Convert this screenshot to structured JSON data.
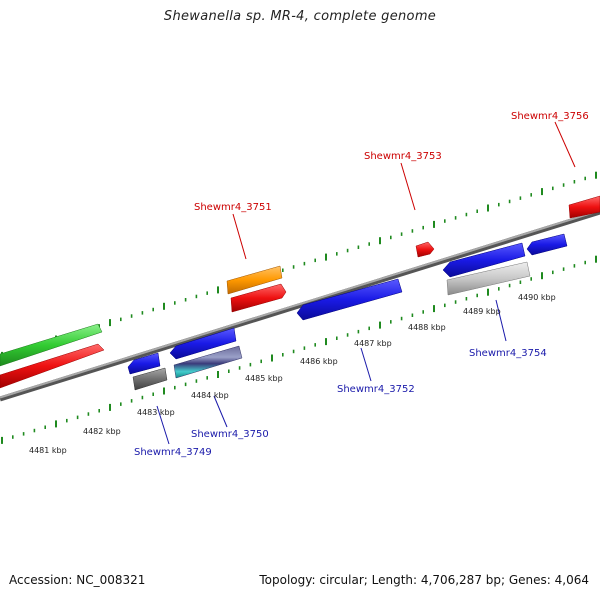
{
  "title": "Shewanella sp. MR-4, complete genome",
  "footer": {
    "accession": "Accession: NC_008321",
    "summary": "Topology: circular; Length: 4,706,287 bp; Genes: 4,064"
  },
  "colors": {
    "forward_label": "#cc0000",
    "reverse_label": "#1a1aaa",
    "backbone": "#808080",
    "tick": "#1f8a1f",
    "red": "#ee1111",
    "blue": "#1a1ae6",
    "green": "#33cc33",
    "orange": "#ff9900",
    "grey": "#707070",
    "light_grey": "#c8c8c8"
  },
  "scale_labels": [
    "4481 kbp",
    "4482 kbp",
    "4483 kbp",
    "4484 kbp",
    "4485 kbp",
    "4486 kbp",
    "4487 kbp",
    "4488 kbp",
    "4489 kbp",
    "4490 kbp"
  ],
  "gene_labels_forward": [
    "Shewmr4_3751",
    "Shewmr4_3753",
    "Shewmr4_3756"
  ],
  "gene_labels_reverse": [
    "Shewmr4_3749",
    "Shewmr4_3750",
    "Shewmr4_3752",
    "Shewmr4_3754"
  ]
}
